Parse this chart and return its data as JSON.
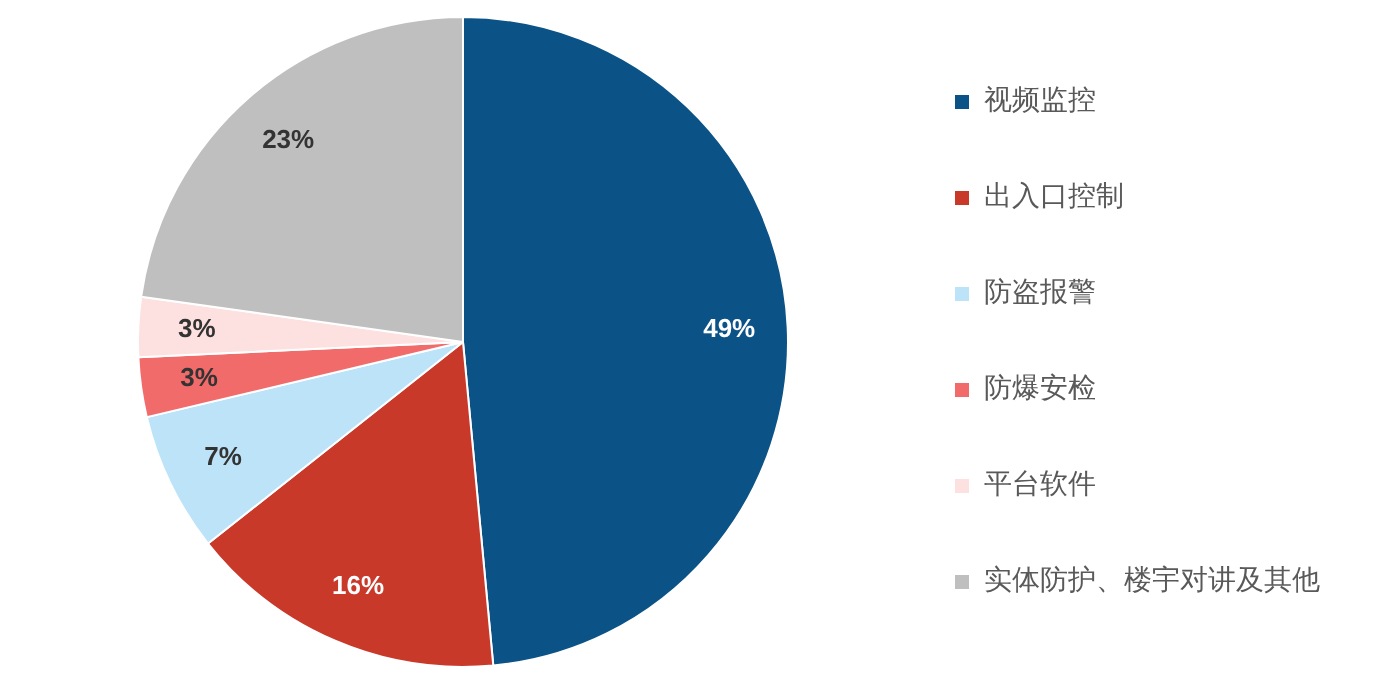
{
  "chart_data": {
    "type": "pie",
    "categories": [
      "视频监控",
      "出入口控制",
      "防盗报警",
      "防爆安检",
      "平台软件",
      "实体防护、楼宇对讲及其他"
    ],
    "values": [
      49,
      16,
      7,
      3,
      3,
      23
    ],
    "colors": [
      "#0b5286",
      "#c9392a",
      "#bde3f8",
      "#f26b6b",
      "#fde1e1",
      "#bfbfbf"
    ],
    "value_labels": [
      "49%",
      "16%",
      "7%",
      "3%",
      "3%",
      "23%"
    ],
    "legend": "right"
  }
}
